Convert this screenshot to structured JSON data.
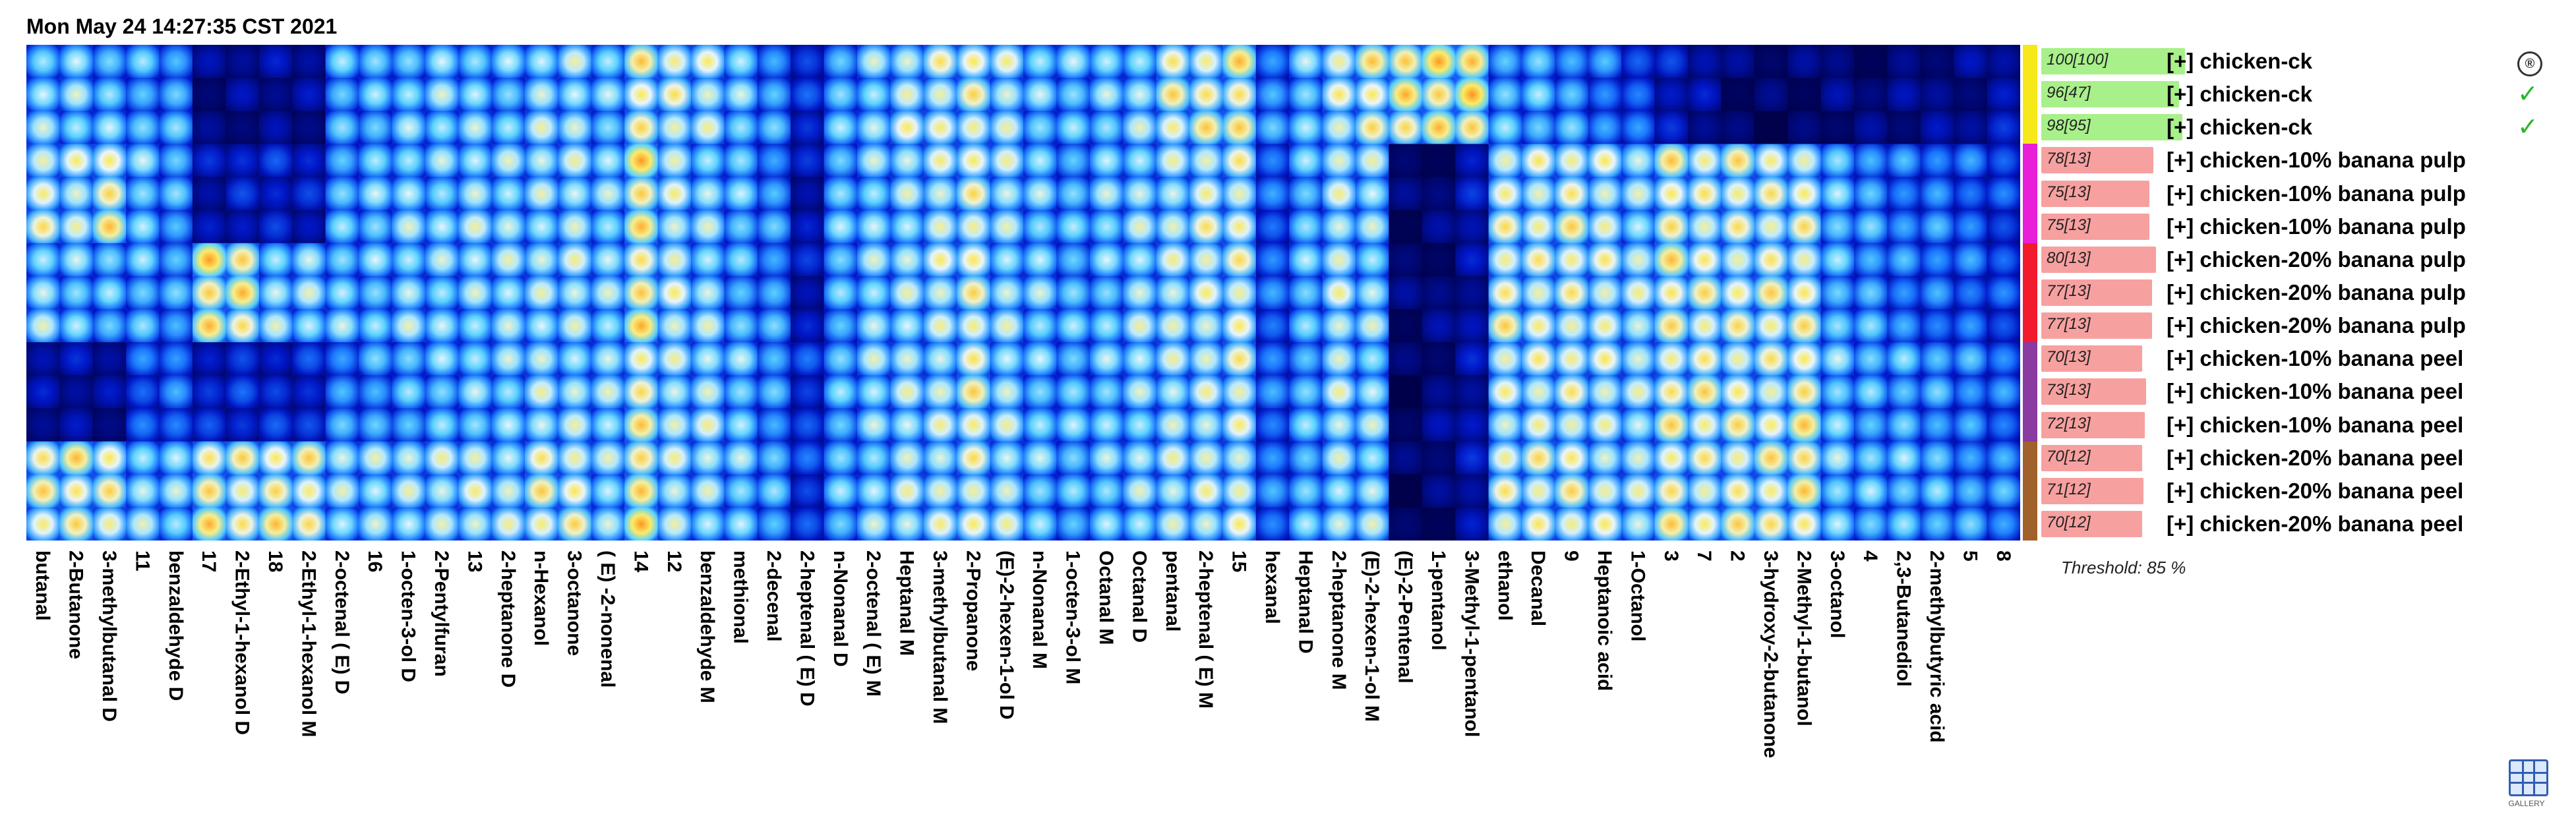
{
  "timestamp": "Mon May 24 14:27:35 CST 2021",
  "chart_data": {
    "type": "heatmap",
    "columns": [
      "butanal",
      "2-Butanone",
      "3-methylbutanal D",
      "11",
      "benzaldehyde D",
      "17",
      "2-Ethyl-1-hexanol D",
      "18",
      "2-Ethyl-1-hexanol M",
      "2-octenal ( E) D",
      "16",
      "1-octen-3-ol D",
      "2-Pentylfuran",
      "13",
      "2-heptanone D",
      "n-Hexanol",
      "3-octanone",
      "( E) -2-nonenal",
      "14",
      "12",
      "benzaldehyde M",
      "methional",
      "2-decenal",
      "2-heptenal ( E) D",
      "n-Nonanal D",
      "2-octenal ( E) M",
      "Heptanal M",
      "3-methylbutanal M",
      "2-Propanone",
      "(E)-2-hexen-1-ol D",
      "n-Nonanal M",
      "1-octen-3-ol M",
      "Octanal M",
      "Octanal D",
      "pentanal",
      "2-heptenal ( E) M",
      "15",
      "hexanal",
      "Heptanal D",
      "2-heptanone M",
      "(E)-2-hexen-1-ol M",
      "(E)-2-Pentenal",
      "1-pentanol",
      "3-Methyl-1-pentanol",
      "ethanol",
      "Decanal",
      "9",
      "Heptanoic acid",
      "1-Octanol",
      "3",
      "7",
      "2",
      "3-hydroxy-2-butanone",
      "2-Methyl-1-butanol",
      "3-octanol",
      "4",
      "2,3-Butanediol",
      "2-methylbutyric acid",
      "5",
      "8"
    ],
    "rows": [
      {
        "label": "[+] chicken-ck",
        "similarity": "100[100]",
        "similarity_value": 100,
        "mark": "stamp",
        "bar_color": "#a8f08a",
        "group_color": "#f7e81a"
      },
      {
        "label": "[+] chicken-ck",
        "similarity": "96[47]",
        "similarity_value": 96,
        "mark": "check",
        "bar_color": "#a8f08a",
        "group_color": "#f7e81a"
      },
      {
        "label": "[+] chicken-ck",
        "similarity": "98[95]",
        "similarity_value": 98,
        "mark": "check",
        "bar_color": "#a8f08a",
        "group_color": "#f7e81a"
      },
      {
        "label": "[+] chicken-10% banana pulp",
        "similarity": "78[13]",
        "similarity_value": 78,
        "mark": "",
        "bar_color": "#f7a0a0",
        "group_color": "#e81ed8"
      },
      {
        "label": "[+] chicken-10% banana pulp",
        "similarity": "75[13]",
        "similarity_value": 75,
        "mark": "",
        "bar_color": "#f7a0a0",
        "group_color": "#e81ed8"
      },
      {
        "label": "[+] chicken-10% banana pulp",
        "similarity": "75[13]",
        "similarity_value": 75,
        "mark": "",
        "bar_color": "#f7a0a0",
        "group_color": "#e81ed8"
      },
      {
        "label": "[+] chicken-20% banana pulp",
        "similarity": "80[13]",
        "similarity_value": 80,
        "mark": "",
        "bar_color": "#f7a0a0",
        "group_color": "#f21a2c"
      },
      {
        "label": "[+] chicken-20% banana pulp",
        "similarity": "77[13]",
        "similarity_value": 77,
        "mark": "",
        "bar_color": "#f7a0a0",
        "group_color": "#f21a2c"
      },
      {
        "label": "[+] chicken-20% banana pulp",
        "similarity": "77[13]",
        "similarity_value": 77,
        "mark": "",
        "bar_color": "#f7a0a0",
        "group_color": "#f21a2c"
      },
      {
        "label": "[+] chicken-10% banana peel",
        "similarity": "70[13]",
        "similarity_value": 70,
        "mark": "",
        "bar_color": "#f7a0a0",
        "group_color": "#8a3aa0"
      },
      {
        "label": "[+] chicken-10% banana peel",
        "similarity": "73[13]",
        "similarity_value": 73,
        "mark": "",
        "bar_color": "#f7a0a0",
        "group_color": "#8a3aa0"
      },
      {
        "label": "[+] chicken-10% banana peel",
        "similarity": "72[13]",
        "similarity_value": 72,
        "mark": "",
        "bar_color": "#f7a0a0",
        "group_color": "#8a3aa0"
      },
      {
        "label": "[+] chicken-20% banana peel",
        "similarity": "70[12]",
        "similarity_value": 70,
        "mark": "",
        "bar_color": "#f7a0a0",
        "group_color": "#a0622a"
      },
      {
        "label": "[+] chicken-20% banana peel",
        "similarity": "71[12]",
        "similarity_value": 71,
        "mark": "",
        "bar_color": "#f7a0a0",
        "group_color": "#a0622a"
      },
      {
        "label": "[+] chicken-20% banana peel",
        "similarity": "70[12]",
        "similarity_value": 70,
        "mark": "",
        "bar_color": "#f7a0a0",
        "group_color": "#a0622a"
      }
    ],
    "group_intensity": [
      [
        0.58,
        0.56,
        0.52,
        0.5,
        0.45,
        0.1,
        0.12,
        0.12,
        0.12,
        0.48,
        0.5,
        0.55,
        0.56,
        0.56,
        0.55,
        0.6,
        0.62,
        0.56,
        0.75,
        0.7,
        0.65,
        0.55,
        0.45,
        0.22,
        0.5,
        0.6,
        0.65,
        0.7,
        0.74,
        0.65,
        0.55,
        0.52,
        0.55,
        0.6,
        0.72,
        0.74,
        0.8,
        0.4,
        0.55,
        0.7,
        0.75,
        0.8,
        0.8,
        0.82,
        0.5,
        0.48,
        0.45,
        0.4,
        0.3,
        0.2,
        0.15,
        0.06,
        0.05,
        0.05,
        0.08,
        0.08,
        0.08,
        0.1,
        0.12,
        0.15
      ],
      [
        0.7,
        0.68,
        0.75,
        0.55,
        0.48,
        0.15,
        0.2,
        0.2,
        0.18,
        0.5,
        0.52,
        0.58,
        0.58,
        0.6,
        0.6,
        0.62,
        0.62,
        0.58,
        0.8,
        0.65,
        0.6,
        0.5,
        0.42,
        0.18,
        0.5,
        0.58,
        0.62,
        0.65,
        0.72,
        0.62,
        0.55,
        0.5,
        0.55,
        0.6,
        0.65,
        0.68,
        0.7,
        0.35,
        0.5,
        0.65,
        0.6,
        0.05,
        0.08,
        0.15,
        0.7,
        0.7,
        0.72,
        0.68,
        0.62,
        0.75,
        0.7,
        0.72,
        0.7,
        0.72,
        0.5,
        0.45,
        0.4,
        0.38,
        0.35,
        0.3
      ],
      [
        0.58,
        0.55,
        0.52,
        0.5,
        0.45,
        0.8,
        0.78,
        0.6,
        0.58,
        0.55,
        0.55,
        0.58,
        0.58,
        0.6,
        0.6,
        0.62,
        0.62,
        0.58,
        0.8,
        0.65,
        0.6,
        0.5,
        0.42,
        0.18,
        0.5,
        0.58,
        0.62,
        0.65,
        0.72,
        0.62,
        0.55,
        0.5,
        0.55,
        0.6,
        0.65,
        0.68,
        0.7,
        0.35,
        0.5,
        0.65,
        0.6,
        0.05,
        0.08,
        0.15,
        0.72,
        0.7,
        0.72,
        0.68,
        0.65,
        0.75,
        0.72,
        0.72,
        0.72,
        0.72,
        0.52,
        0.45,
        0.4,
        0.38,
        0.35,
        0.3
      ],
      [
        0.15,
        0.14,
        0.12,
        0.3,
        0.35,
        0.22,
        0.22,
        0.22,
        0.25,
        0.4,
        0.45,
        0.5,
        0.52,
        0.55,
        0.55,
        0.62,
        0.62,
        0.58,
        0.75,
        0.65,
        0.62,
        0.55,
        0.45,
        0.25,
        0.5,
        0.58,
        0.62,
        0.65,
        0.72,
        0.62,
        0.55,
        0.5,
        0.55,
        0.6,
        0.62,
        0.65,
        0.68,
        0.35,
        0.5,
        0.62,
        0.58,
        0.05,
        0.08,
        0.15,
        0.68,
        0.68,
        0.7,
        0.66,
        0.62,
        0.75,
        0.72,
        0.72,
        0.72,
        0.75,
        0.55,
        0.5,
        0.48,
        0.45,
        0.4,
        0.35
      ],
      [
        0.75,
        0.75,
        0.72,
        0.6,
        0.55,
        0.78,
        0.75,
        0.75,
        0.75,
        0.62,
        0.6,
        0.62,
        0.62,
        0.65,
        0.64,
        0.72,
        0.72,
        0.62,
        0.8,
        0.65,
        0.62,
        0.55,
        0.48,
        0.25,
        0.5,
        0.58,
        0.62,
        0.65,
        0.72,
        0.62,
        0.55,
        0.5,
        0.55,
        0.6,
        0.62,
        0.65,
        0.68,
        0.35,
        0.5,
        0.62,
        0.58,
        0.05,
        0.08,
        0.15,
        0.7,
        0.7,
        0.72,
        0.68,
        0.62,
        0.75,
        0.72,
        0.72,
        0.75,
        0.78,
        0.55,
        0.52,
        0.5,
        0.48,
        0.45,
        0.4
      ]
    ],
    "color_scale": [
      "#00004a",
      "#0016c8",
      "#1a78ff",
      "#5ad2ff",
      "#e8f6ff",
      "#ffe94a",
      "#ff9b1e",
      "#e41a10"
    ],
    "threshold": "Threshold: 85 %"
  },
  "gallery": {
    "label": "GALLERY",
    "icon": "gallery-grid-icon"
  }
}
